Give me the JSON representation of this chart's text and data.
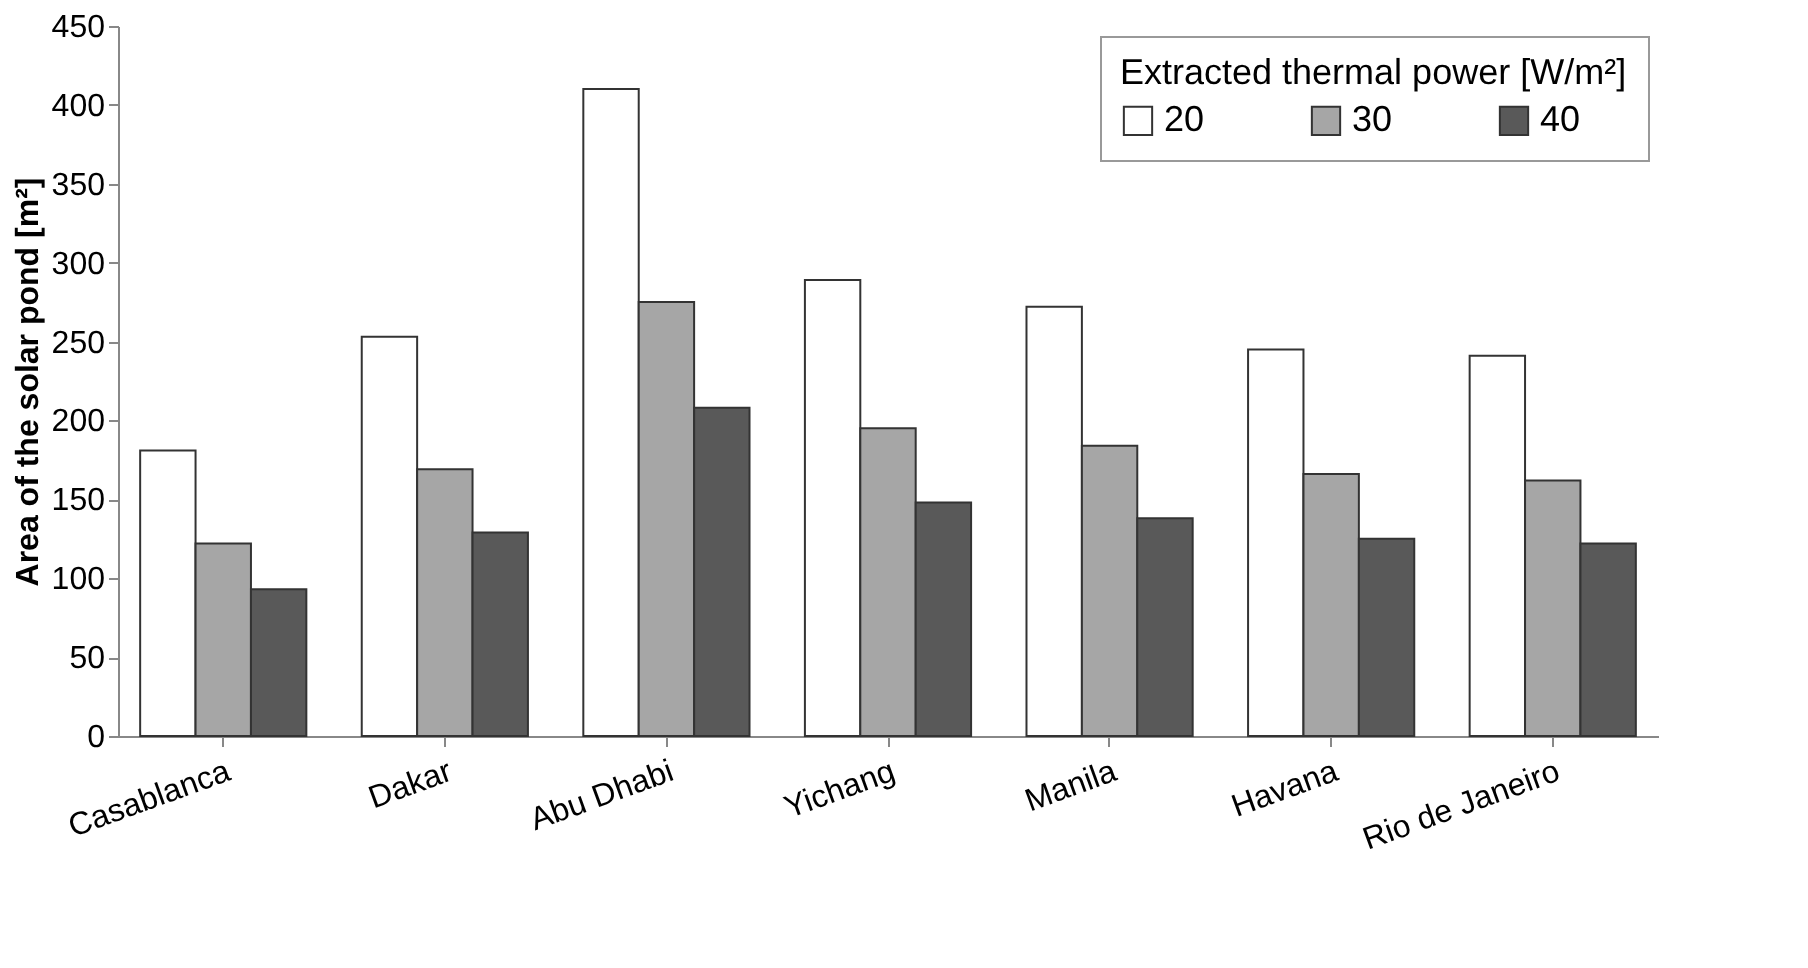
{
  "chart_data": {
    "type": "bar",
    "ylabel": "Area of the solar pond [m²]",
    "legend_title": "Extracted thermal power [W/m²]",
    "categories": [
      "Casablanca",
      "Dakar",
      "Abu Dhabi",
      "Yichang",
      "Manila",
      "Havana",
      "Rio de Janeiro"
    ],
    "series": [
      {
        "name": "20",
        "color": "#ffffff",
        "values": [
          181,
          253,
          410,
          289,
          272,
          245,
          241
        ]
      },
      {
        "name": "30",
        "color": "#a6a6a6",
        "values": [
          122,
          169,
          275,
          195,
          184,
          166,
          162
        ]
      },
      {
        "name": "40",
        "color": "#595959",
        "values": [
          93,
          129,
          208,
          148,
          138,
          125,
          122
        ]
      }
    ],
    "ylim": [
      0,
      450
    ],
    "yticks": [
      0,
      50,
      100,
      150,
      200,
      250,
      300,
      350,
      400,
      450
    ],
    "grid": false,
    "legend": "top right"
  }
}
